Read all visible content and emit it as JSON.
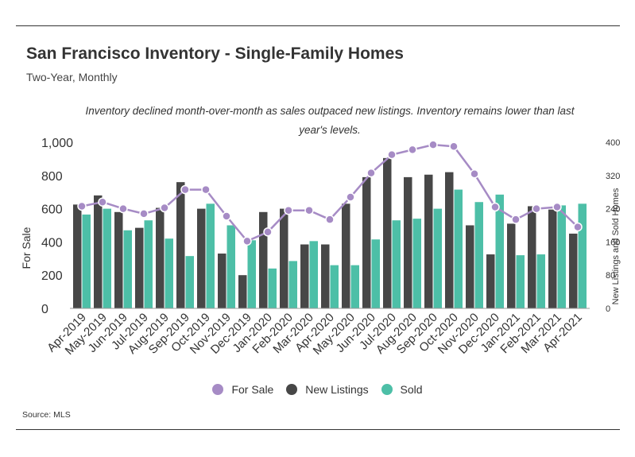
{
  "title": "San Francisco Inventory - Single-Family Homes",
  "subtitle": "Two-Year, Monthly",
  "annotation": "Inventory declined month-over-month as sales outpaced new listings. Inventory remains lower than last year's levels.",
  "source": "Source:  MLS",
  "colors": {
    "for_sale": "#a68bc5",
    "new_listings": "#474747",
    "sold": "#4dbfa7"
  },
  "chart_data": {
    "type": "bar",
    "categories": [
      "Apr-2019",
      "May-2019",
      "Jun-2019",
      "Jul-2019",
      "Aug-2019",
      "Sep-2019",
      "Oct-2019",
      "Nov-2019",
      "Dec-2019",
      "Jan-2020",
      "Feb-2020",
      "Mar-2020",
      "Apr-2020",
      "May-2020",
      "Jun-2020",
      "Jul-2020",
      "Aug-2020",
      "Sep-2020",
      "Oct-2020",
      "Nov-2020",
      "Dec-2020",
      "Jan-2021",
      "Feb-2021",
      "Mar-2021",
      "Apr-2021"
    ],
    "series": [
      {
        "name": "New Listings",
        "type": "bar",
        "axis": "right",
        "values": [
          250,
          272,
          232,
          194,
          242,
          304,
          240,
          132,
          80,
          232,
          240,
          154,
          154,
          252,
          316,
          362,
          316,
          322,
          328,
          200,
          130,
          204,
          246,
          238,
          180
        ]
      },
      {
        "name": "Sold",
        "type": "bar",
        "axis": "right",
        "values": [
          226,
          240,
          188,
          212,
          168,
          126,
          252,
          200,
          164,
          96,
          114,
          162,
          104,
          104,
          166,
          212,
          216,
          240,
          286,
          256,
          274,
          128,
          130,
          248,
          252
        ]
      },
      {
        "name": "For Sale",
        "type": "line",
        "axis": "left",
        "values": [
          615,
          640,
          600,
          570,
          605,
          715,
          715,
          555,
          405,
          460,
          590,
          590,
          535,
          670,
          815,
          925,
          955,
          985,
          975,
          810,
          610,
          535,
          600,
          610,
          490
        ]
      }
    ],
    "left_axis": {
      "label": "For Sale",
      "ylim": [
        0,
        1000
      ],
      "ticks": [
        "0",
        "200",
        "400",
        "600",
        "800",
        "1,000"
      ]
    },
    "right_axis": {
      "label": "New Listings and Sold Homes",
      "ylim": [
        0,
        400
      ],
      "ticks": [
        "0",
        "80",
        "160",
        "240",
        "320",
        "400"
      ]
    },
    "legend": [
      "For Sale",
      "New Listings",
      "Sold"
    ],
    "legend_position": "bottom",
    "grid": false
  }
}
